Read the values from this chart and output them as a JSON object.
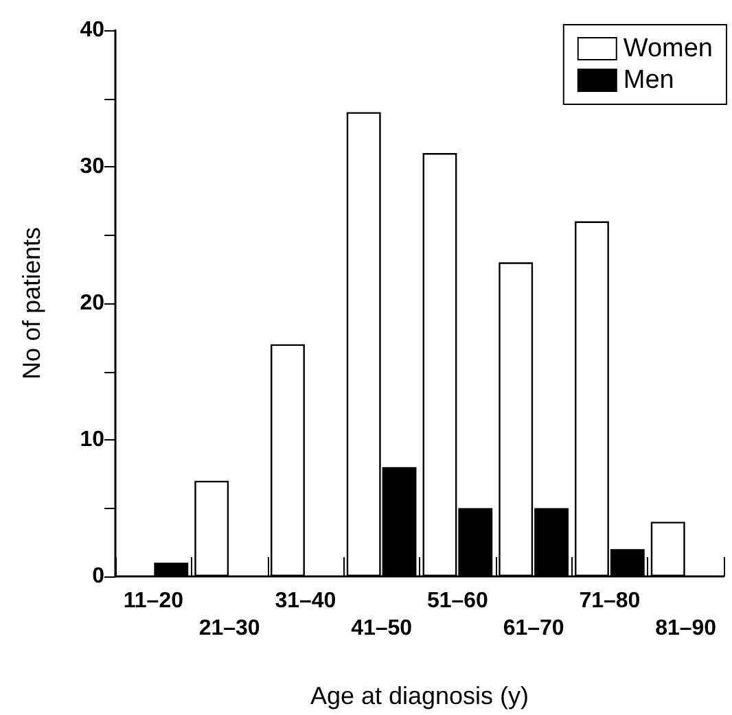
{
  "chart_data": {
    "type": "bar",
    "xlabel": "Age at diagnosis (y)",
    "ylabel": "No of patients",
    "categories": [
      "11–20",
      "21–30",
      "31–40",
      "41–50",
      "51–60",
      "61–70",
      "71–80",
      "81–90"
    ],
    "series": [
      {
        "name": "Women",
        "color": "#ffffff",
        "values": [
          0,
          7,
          17,
          34,
          31,
          23,
          26,
          4
        ]
      },
      {
        "name": "Men",
        "color": "#000000",
        "values": [
          1,
          0,
          0,
          8,
          5,
          5,
          2,
          0
        ]
      }
    ],
    "ylim": [
      0,
      40
    ],
    "yticks": [
      0,
      {
        "value": 5,
        "label": null
      },
      10,
      {
        "value": 15,
        "label": null
      },
      20,
      {
        "value": 25,
        "label": null
      },
      30,
      {
        "value": 35,
        "label": null
      },
      40
    ],
    "grid": false,
    "legend": "top right"
  }
}
